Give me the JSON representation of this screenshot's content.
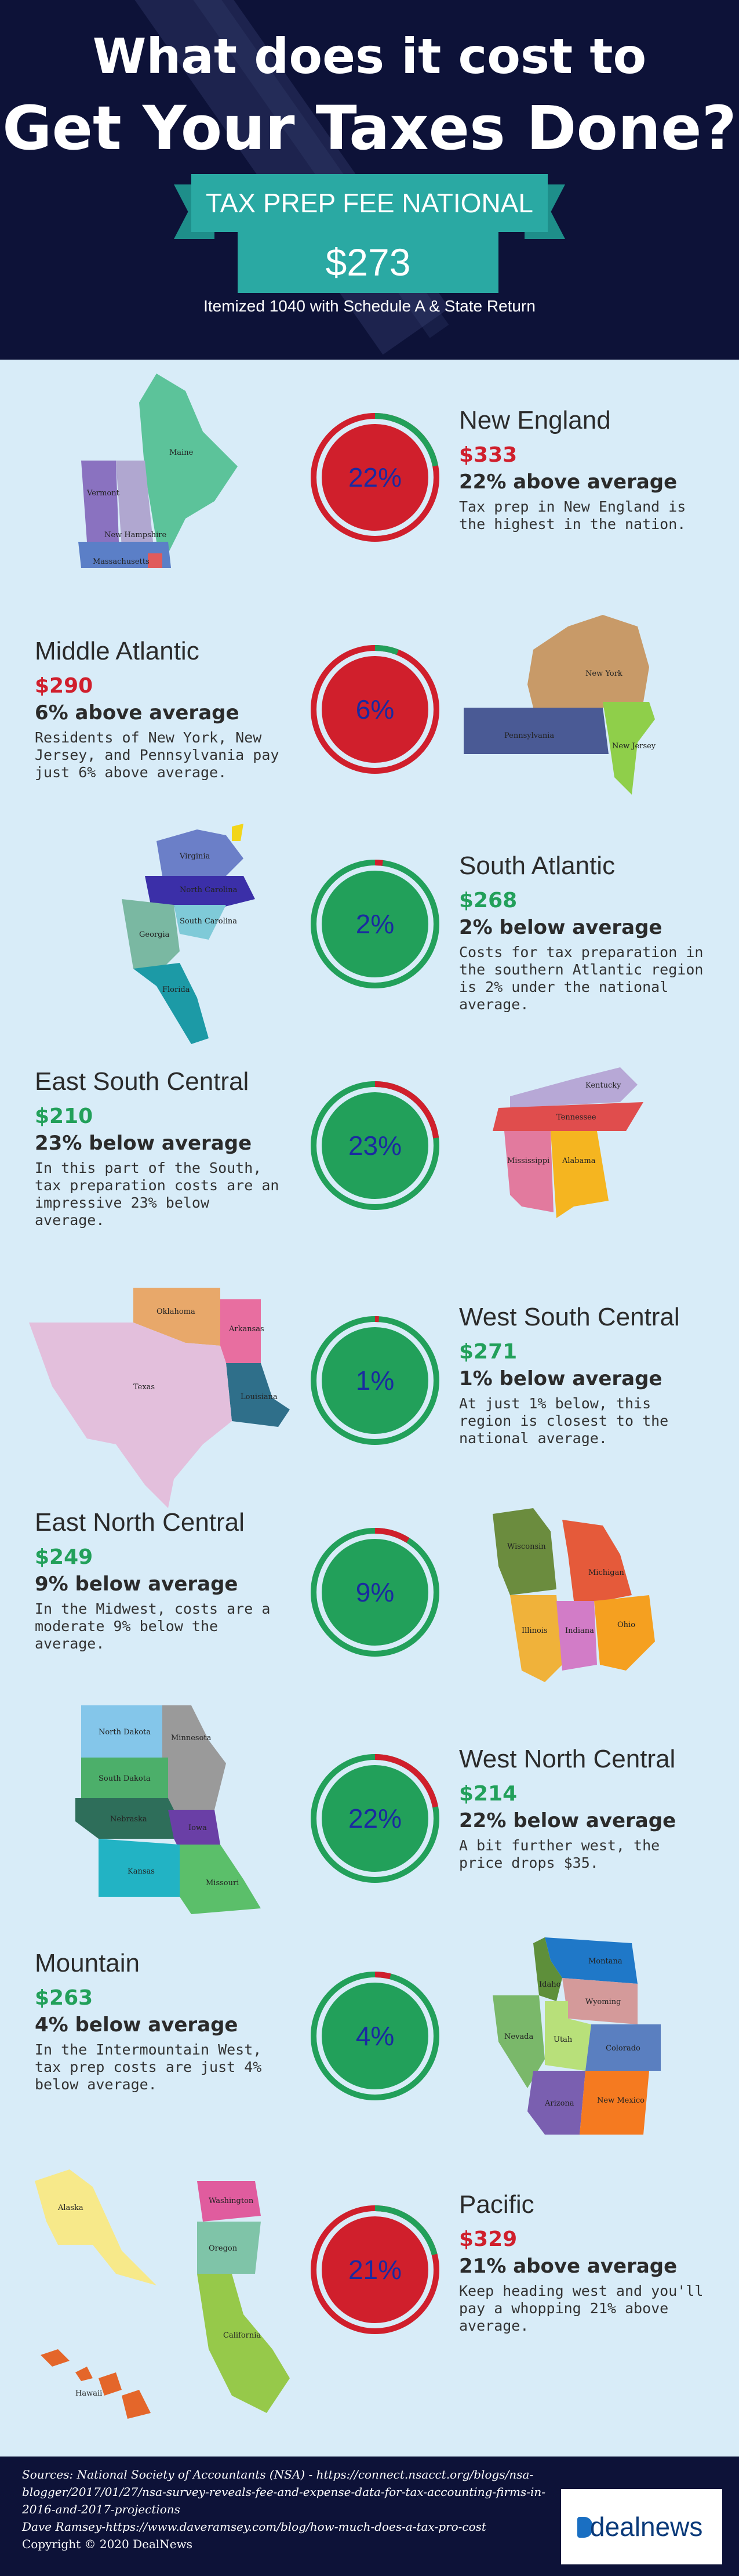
{
  "header": {
    "title_line1": "What does it cost to",
    "title_line2": "Get Your Taxes Done?",
    "ribbon_label": "TAX PREP FEE NATIONAL AVERAGE",
    "average_price": "$273",
    "subtitle": "Itemized 1040 with Schedule A & State Return"
  },
  "colors": {
    "navy": "#0d1238",
    "teal": "#2aa9a3",
    "above_red": "#d01f2c",
    "below_green": "#22a05a",
    "background": "#d8ecf8"
  },
  "regions": [
    {
      "name": "New England",
      "price": "$333",
      "diff": "22% above average",
      "percent_label": "22%",
      "percent": 22,
      "direction": "above",
      "description": "Tax prep in New England is the highest in the nation.",
      "states": [
        "Maine",
        "Vermont",
        "New Hampshire",
        "Massachusetts"
      ]
    },
    {
      "name": "Middle Atlantic",
      "price": "$290",
      "diff": "6% above average",
      "percent_label": "6%",
      "percent": 6,
      "direction": "above",
      "description": "Residents of New York, New Jersey, and Pennsylvania pay just 6% above average.",
      "states": [
        "New York",
        "Pennsylvania",
        "New Jersey"
      ]
    },
    {
      "name": "South Atlantic",
      "price": "$268",
      "diff": "2% below average",
      "percent_label": "2%",
      "percent": 2,
      "direction": "below",
      "description": "Costs for tax preparation in the southern Atlantic region is 2% under the national average.",
      "states": [
        "Virginia",
        "North Carolina",
        "South Carolina",
        "Georgia",
        "Florida"
      ]
    },
    {
      "name": "East South Central",
      "price": "$210",
      "diff": "23% below average",
      "percent_label": "23%",
      "percent": 23,
      "direction": "below",
      "description": "In this part of the South, tax preparation costs are an impressive 23% below average.",
      "states": [
        "Kentucky",
        "Tennessee",
        "Mississippi",
        "Alabama"
      ]
    },
    {
      "name": "West South Central",
      "price": "$271",
      "diff": "1% below average",
      "percent_label": "1%",
      "percent": 1,
      "direction": "below",
      "description": "At just 1% below, this region is closest to the national average.",
      "states": [
        "Oklahoma",
        "Arkansas",
        "Texas",
        "Louisiana"
      ]
    },
    {
      "name": "East North Central",
      "price": "$249",
      "diff": "9% below average",
      "percent_label": "9%",
      "percent": 9,
      "direction": "below",
      "description": "In the Midwest, costs are a moderate 9% below the average.",
      "states": [
        "Wisconsin",
        "Michigan",
        "Illinois",
        "Indiana",
        "Ohio"
      ]
    },
    {
      "name": "West North Central",
      "price": "$214",
      "diff": "22% below average",
      "percent_label": "22%",
      "percent": 22,
      "direction": "below",
      "description": "A bit further west, the price drops $35.",
      "states": [
        "North Dakota",
        "Minnesota",
        "South Dakota",
        "Nebraska",
        "Iowa",
        "Kansas",
        "Missouri"
      ]
    },
    {
      "name": "Mountain",
      "price": "$263",
      "diff": "4% below average",
      "percent_label": "4%",
      "percent": 4,
      "direction": "below",
      "description": "In the Intermountain West, tax prep costs are just 4% below average.",
      "states": [
        "Montana",
        "Idaho",
        "Wyoming",
        "Nevada",
        "Utah",
        "Colorado",
        "Arizona",
        "New Mexico"
      ]
    },
    {
      "name": "Pacific",
      "price": "$329",
      "diff": "21% above average",
      "percent_label": "21%",
      "percent": 21,
      "direction": "above",
      "description": "Keep heading west and you'll pay a whopping 21% above average.",
      "states": [
        "Alaska",
        "Washington",
        "Oregon",
        "California",
        "Hawaii"
      ]
    }
  ],
  "footer": {
    "sources_line1": "Sources: National Society of Accountants (NSA) - https://connect.nsacct.org/blogs/nsa-blogger/2017/01/27/nsa-survey-reveals-fee-and-expense-data-for-tax-accounting-firms-in-2016-and-2017-projections",
    "sources_line2": "Dave Ramsey-https://www.daveramsey.com/blog/how-much-does-a-tax-pro-cost",
    "copyright": "Copyright © 2020 DealNews",
    "logo_text": "dealnews"
  }
}
